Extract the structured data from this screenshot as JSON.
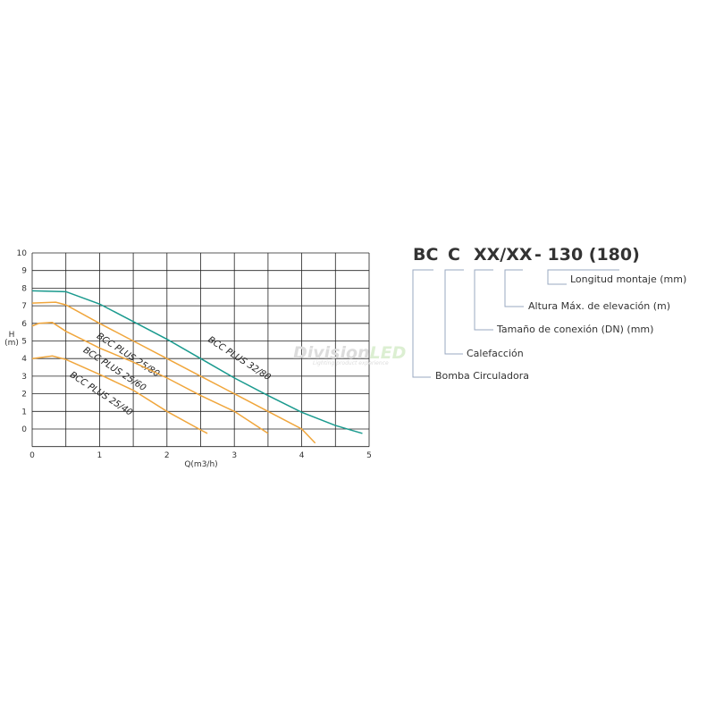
{
  "chart_data": {
    "type": "line",
    "xlabel": "Q(m3/h)",
    "ylabel": "H\n(m)",
    "xlim": [
      0,
      5
    ],
    "ylim": [
      -1,
      10
    ],
    "xticks": [
      0,
      1,
      2,
      3,
      4,
      5
    ],
    "yticks": [
      0,
      1,
      2,
      3,
      4,
      5,
      6,
      7,
      8,
      9,
      10
    ],
    "grid": true,
    "series": [
      {
        "name": "BCC PLUS 32/80",
        "color": "#1a9a8e",
        "label_pos": [
          2.6,
          5.0
        ],
        "points": [
          [
            0,
            7.85
          ],
          [
            0.5,
            7.8
          ],
          [
            1,
            7.1
          ],
          [
            1.5,
            6.1
          ],
          [
            2,
            5.1
          ],
          [
            2.5,
            4.0
          ],
          [
            3,
            2.9
          ],
          [
            3.5,
            1.9
          ],
          [
            4,
            0.95
          ],
          [
            4.5,
            0.2
          ],
          [
            4.9,
            -0.25
          ]
        ]
      },
      {
        "name": "BCC PLUS 25/80",
        "color": "#f0a63c",
        "label_pos": [
          0.95,
          5.2
        ],
        "points": [
          [
            0,
            7.15
          ],
          [
            0.35,
            7.2
          ],
          [
            0.5,
            7.05
          ],
          [
            1,
            6.0
          ],
          [
            1.5,
            5.0
          ],
          [
            2,
            4.0
          ],
          [
            2.5,
            3.0
          ],
          [
            3,
            2.0
          ],
          [
            3.5,
            1.0
          ],
          [
            4,
            0
          ],
          [
            4.2,
            -0.8
          ]
        ]
      },
      {
        "name": "BCC PLUS 25/60",
        "color": "#f0a63c",
        "label_pos": [
          0.75,
          4.4
        ],
        "points": [
          [
            0,
            5.85
          ],
          [
            0.1,
            6.0
          ],
          [
            0.3,
            6.05
          ],
          [
            0.5,
            5.55
          ],
          [
            1,
            4.6
          ],
          [
            1.5,
            3.8
          ],
          [
            2,
            2.9
          ],
          [
            2.5,
            1.9
          ],
          [
            3,
            1.0
          ],
          [
            3.5,
            -0.25
          ]
        ]
      },
      {
        "name": "BCC PLUS 25/40",
        "color": "#f0a63c",
        "label_pos": [
          0.55,
          3.0
        ],
        "points": [
          [
            0,
            4.0
          ],
          [
            0.3,
            4.15
          ],
          [
            0.5,
            3.95
          ],
          [
            1,
            3.1
          ],
          [
            1.5,
            2.2
          ],
          [
            2,
            1.0
          ],
          [
            2.5,
            -0.05
          ],
          [
            2.6,
            -0.25
          ]
        ]
      }
    ]
  },
  "watermark": {
    "brand": "Division",
    "brand_accent": "LED",
    "tagline": "Lighting product experience"
  },
  "code_legend": {
    "parts": [
      "BC",
      "C",
      "XX/XX",
      "- 130 (180)"
    ],
    "labels": [
      "Longitud montaje (mm)",
      "Altura Máx. de elevación (m)",
      "Tamaño de conexión (DN) (mm)",
      "Calefacción",
      "Bomba Circuladora"
    ],
    "line_color": "#9aa8c0"
  }
}
